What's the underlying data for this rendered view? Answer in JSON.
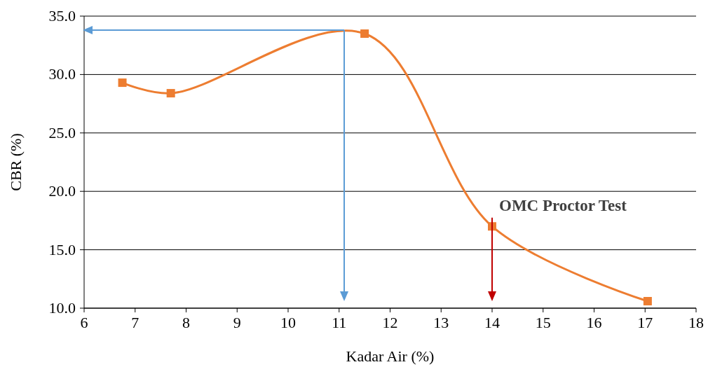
{
  "chart_data": {
    "type": "line",
    "xlabel": "Kadar Air (%)",
    "ylabel": "CBR (%)",
    "x": [
      6.75,
      7.7,
      11.5,
      14,
      17.05
    ],
    "series": [
      {
        "color": "#ed7d31",
        "values": [
          29.3,
          28.4,
          33.5,
          17.0,
          10.6
        ]
      }
    ],
    "xlim": [
      6,
      18
    ],
    "xticks": [
      6,
      7,
      8,
      9,
      10,
      11,
      12,
      13,
      14,
      15,
      16,
      17,
      18
    ],
    "ylim": [
      10,
      35
    ],
    "yticks": [
      {
        "value": 10,
        "label": "10.0"
      },
      {
        "value": 15,
        "label": "15.0"
      },
      {
        "value": 20,
        "label": "20.0"
      },
      {
        "value": 25,
        "label": "25.0"
      },
      {
        "value": 30,
        "label": "30.0"
      },
      {
        "value": 35,
        "label": "35.0"
      }
    ],
    "grid": "y",
    "marker": "square",
    "ref_lines": [
      {
        "axis": "x",
        "value": 11.1,
        "color": "#5b9bd5"
      },
      {
        "axis": "y",
        "value": 33.8,
        "color": "#5b9bd5"
      },
      {
        "axis": "x",
        "value": 14,
        "label": "OMC Proctor Test",
        "color": "#c00000"
      }
    ]
  }
}
